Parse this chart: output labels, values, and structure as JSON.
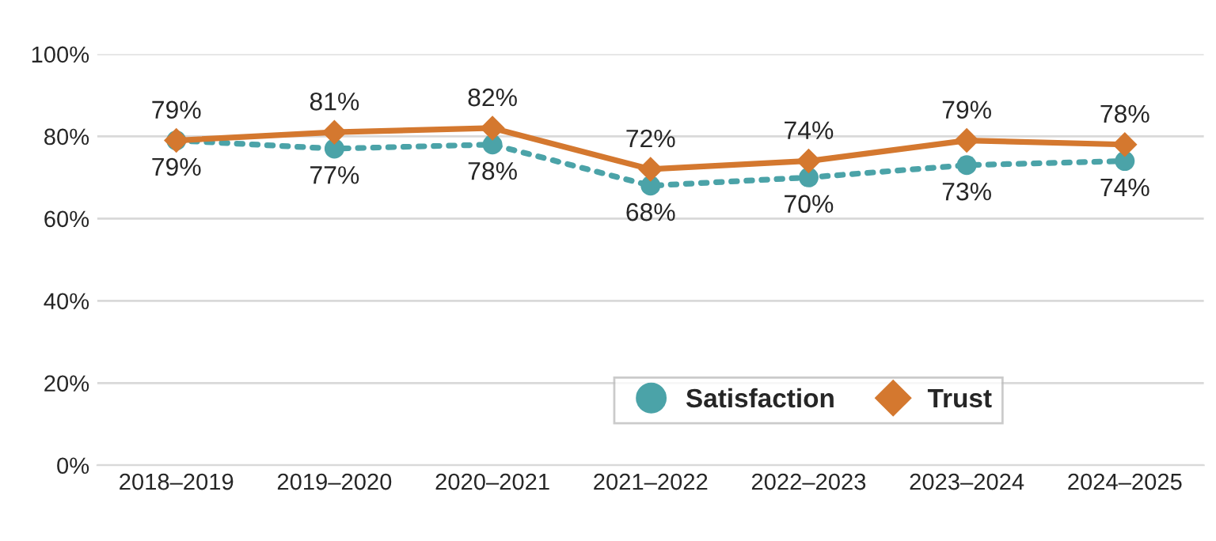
{
  "chart_data": {
    "type": "line",
    "categories": [
      "2018–2019",
      "2019–2020",
      "2020–2021",
      "2021–2022",
      "2022–2023",
      "2023–2024",
      "2024–2025"
    ],
    "series": [
      {
        "name": "Satisfaction",
        "color": "#4ba3a8",
        "marker": "circle",
        "line_style": "dotted",
        "values": [
          79,
          77,
          78,
          68,
          70,
          73,
          74
        ],
        "value_labels": [
          "79%",
          "77%",
          "78%",
          "68%",
          "70%",
          "73%",
          "74%"
        ]
      },
      {
        "name": "Trust",
        "color": "#d4782f",
        "marker": "diamond",
        "line_style": "solid",
        "values": [
          79,
          81,
          82,
          72,
          74,
          79,
          78
        ],
        "value_labels": [
          "79%",
          "81%",
          "82%",
          "72%",
          "74%",
          "79%",
          "78%"
        ]
      }
    ],
    "ylim": [
      0,
      100
    ],
    "yticks": [
      {
        "value": 0,
        "label": "0%"
      },
      {
        "value": 20,
        "label": "20%"
      },
      {
        "value": 40,
        "label": "40%"
      },
      {
        "value": 60,
        "label": "60%"
      },
      {
        "value": 80,
        "label": "80%"
      },
      {
        "value": 100,
        "label": "100%"
      }
    ],
    "grid": "y",
    "legend": "bottom right"
  }
}
